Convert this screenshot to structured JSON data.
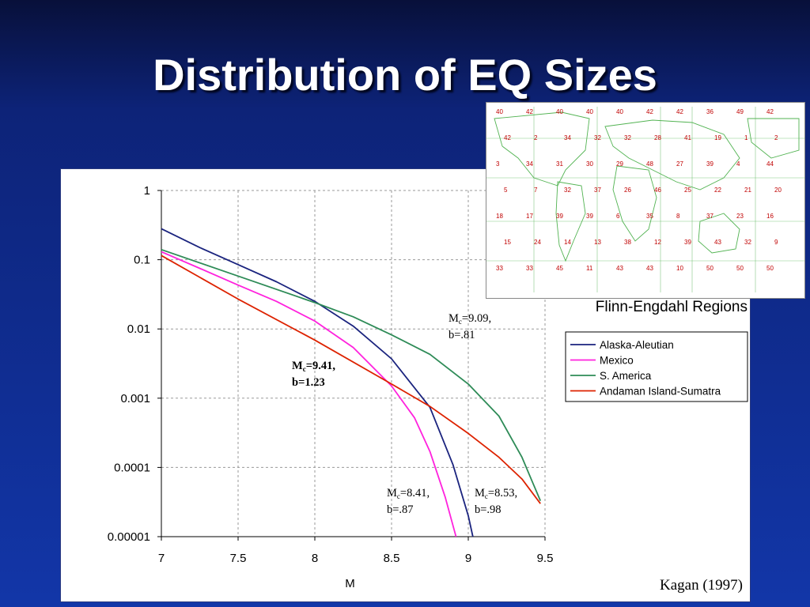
{
  "slide": {
    "title": "Distribution of EQ Sizes",
    "map_caption": "Flinn-Engdahl Regions",
    "credit": "Kagan (1997)"
  },
  "annotations": [
    {
      "series": "S. America",
      "mc_label": "M",
      "mc_sub": "c",
      "mc_value": "=9.09,",
      "b": "b=.81",
      "bold": false
    },
    {
      "series": "Andaman Island-Sumatra",
      "mc_label": "M",
      "mc_sub": "c",
      "mc_value": "=9.41,",
      "b": "b=1.23",
      "bold": true
    },
    {
      "series": "Mexico",
      "mc_label": "M",
      "mc_sub": "c",
      "mc_value": "=8.41,",
      "b": "b=.87",
      "bold": false
    },
    {
      "series": "Alaska-Aleutian",
      "mc_label": "M",
      "mc_sub": "c",
      "mc_value": "=8.53,",
      "b": "b=.98",
      "bold": false
    }
  ],
  "map_numbers": [
    "40",
    "42",
    "40",
    "40",
    "40",
    "42",
    "42",
    "36",
    "49",
    "42",
    "42",
    "2",
    "34",
    "32",
    "32",
    "28",
    "41",
    "19",
    "1",
    "2",
    "3",
    "34",
    "31",
    "30",
    "29",
    "48",
    "27",
    "39",
    "4",
    "44",
    "5",
    "7",
    "32",
    "37",
    "26",
    "46",
    "25",
    "22",
    "21",
    "20",
    "18",
    "17",
    "39",
    "39",
    "6",
    "35",
    "8",
    "37",
    "23",
    "16",
    "15",
    "24",
    "14",
    "13",
    "38",
    "12",
    "39",
    "43",
    "32",
    "9",
    "33",
    "33",
    "45",
    "11",
    "43",
    "43",
    "10",
    "50",
    "50",
    "50"
  ],
  "chart_data": {
    "type": "line",
    "xlabel": "M",
    "ylabel": "",
    "y_scale": "log",
    "xlim": [
      7,
      9.5
    ],
    "ylim": [
      1e-05,
      1
    ],
    "x_ticks": [
      "7",
      "7.5",
      "8",
      "8.5",
      "9",
      "9.5"
    ],
    "y_ticks": [
      "1",
      "0.1",
      "0.01",
      "0.001",
      "0.0001",
      "0.00001"
    ],
    "grid": true,
    "legend_position": "right",
    "series": [
      {
        "name": "Alaska-Aleutian",
        "color": "#1a237e",
        "x": [
          7,
          7.25,
          7.5,
          7.75,
          8,
          8.25,
          8.5,
          8.75,
          8.9,
          9,
          9.03
        ],
        "y": [
          0.28,
          0.15,
          0.085,
          0.048,
          0.025,
          0.011,
          0.0037,
          0.00074,
          0.00011,
          2e-05,
          1e-05
        ]
      },
      {
        "name": "Mexico",
        "color": "#ff22dd",
        "x": [
          7,
          7.25,
          7.5,
          7.75,
          8,
          8.25,
          8.5,
          8.65,
          8.75,
          8.85,
          8.92
        ],
        "y": [
          0.13,
          0.075,
          0.043,
          0.025,
          0.013,
          0.0054,
          0.0015,
          0.00052,
          0.00017,
          3.7e-05,
          1e-05
        ]
      },
      {
        "name": "S. America",
        "color": "#2e8b57",
        "x": [
          7,
          7.5,
          8,
          8.25,
          8.5,
          8.75,
          9,
          9.2,
          9.35,
          9.42,
          9.47
        ],
        "y": [
          0.14,
          0.058,
          0.024,
          0.015,
          0.0082,
          0.0043,
          0.0016,
          0.00055,
          0.00014,
          6e-05,
          3.3e-05
        ]
      },
      {
        "name": "Andaman Island-Sumatra",
        "color": "#dd2200",
        "x": [
          7,
          7.5,
          8,
          8.5,
          8.75,
          9,
          9.2,
          9.35,
          9.47
        ],
        "y": [
          0.115,
          0.027,
          0.0069,
          0.0016,
          0.00076,
          0.00031,
          0.00014,
          6.8e-05,
          3e-05
        ]
      }
    ]
  }
}
